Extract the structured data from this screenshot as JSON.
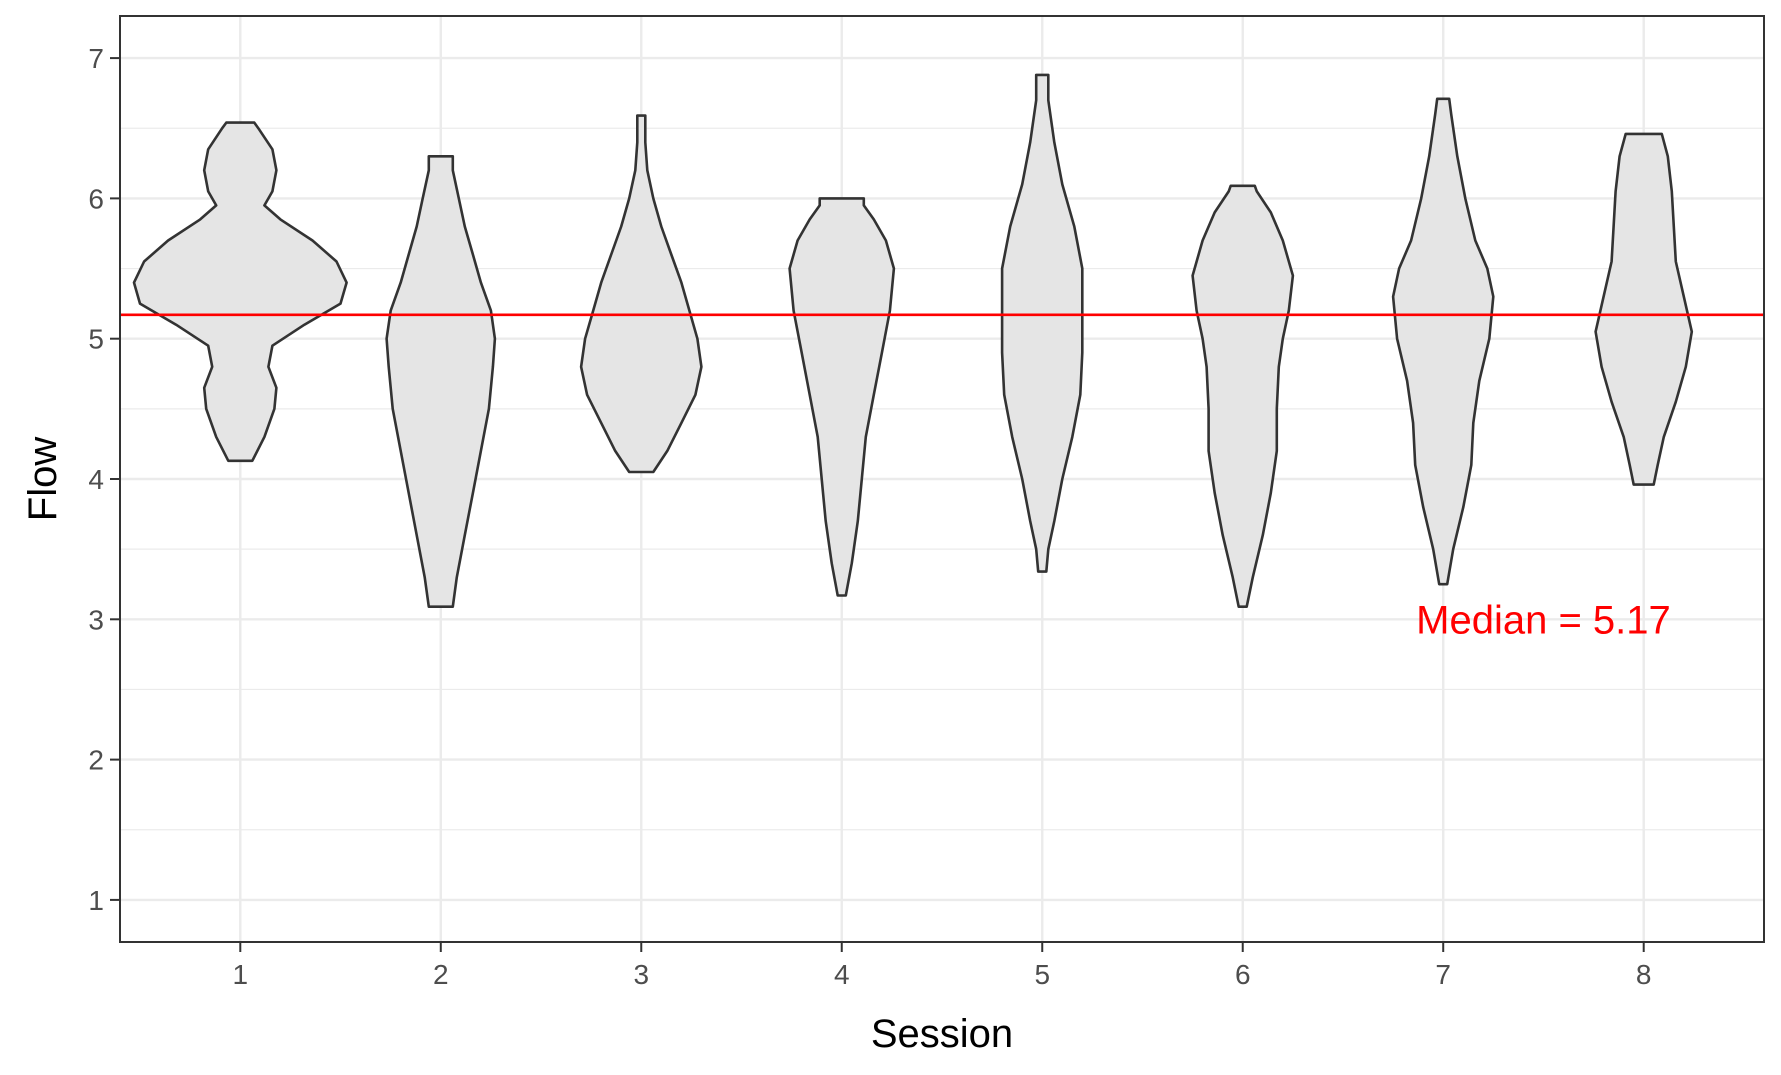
{
  "chart_data": {
    "type": "violin",
    "xlabel": "Session",
    "ylabel": "Flow",
    "categories": [
      "1",
      "2",
      "3",
      "4",
      "5",
      "6",
      "7",
      "8"
    ],
    "y_ticks": [
      "1",
      "2",
      "3",
      "4",
      "5",
      "6",
      "7"
    ],
    "ylim": [
      0.7,
      7.3
    ],
    "grid": true,
    "fill_color": "#e5e5e5",
    "outline_color": "#333333",
    "reference_line": {
      "value": 5.17,
      "color": "#ff0000"
    },
    "annotation": {
      "text": "Median = 5.17",
      "x": 7.5,
      "y": 3.0,
      "color": "#ff0000"
    },
    "violins": [
      {
        "session": "1",
        "profile": [
          [
            4.13,
            0.06
          ],
          [
            4.3,
            0.12
          ],
          [
            4.5,
            0.17
          ],
          [
            4.65,
            0.18
          ],
          [
            4.8,
            0.14
          ],
          [
            4.95,
            0.16
          ],
          [
            5.1,
            0.32
          ],
          [
            5.25,
            0.5
          ],
          [
            5.4,
            0.53
          ],
          [
            5.55,
            0.48
          ],
          [
            5.7,
            0.36
          ],
          [
            5.85,
            0.2
          ],
          [
            5.95,
            0.12
          ],
          [
            6.05,
            0.16
          ],
          [
            6.2,
            0.18
          ],
          [
            6.35,
            0.16
          ],
          [
            6.5,
            0.09
          ],
          [
            6.54,
            0.07
          ]
        ]
      },
      {
        "session": "2",
        "profile": [
          [
            3.09,
            0.06
          ],
          [
            3.3,
            0.08
          ],
          [
            3.6,
            0.12
          ],
          [
            3.9,
            0.16
          ],
          [
            4.2,
            0.2
          ],
          [
            4.5,
            0.24
          ],
          [
            4.8,
            0.26
          ],
          [
            5.0,
            0.27
          ],
          [
            5.2,
            0.25
          ],
          [
            5.4,
            0.2
          ],
          [
            5.6,
            0.16
          ],
          [
            5.8,
            0.12
          ],
          [
            6.0,
            0.09
          ],
          [
            6.2,
            0.06
          ],
          [
            6.3,
            0.06
          ]
        ]
      },
      {
        "session": "3",
        "profile": [
          [
            4.05,
            0.06
          ],
          [
            4.2,
            0.13
          ],
          [
            4.4,
            0.2
          ],
          [
            4.6,
            0.27
          ],
          [
            4.8,
            0.3
          ],
          [
            5.0,
            0.28
          ],
          [
            5.2,
            0.24
          ],
          [
            5.4,
            0.2
          ],
          [
            5.6,
            0.15
          ],
          [
            5.8,
            0.1
          ],
          [
            6.0,
            0.06
          ],
          [
            6.2,
            0.03
          ],
          [
            6.4,
            0.02
          ],
          [
            6.59,
            0.02
          ]
        ]
      },
      {
        "session": "4",
        "profile": [
          [
            3.17,
            0.02
          ],
          [
            3.4,
            0.05
          ],
          [
            3.7,
            0.08
          ],
          [
            4.0,
            0.1
          ],
          [
            4.3,
            0.12
          ],
          [
            4.6,
            0.16
          ],
          [
            4.9,
            0.2
          ],
          [
            5.2,
            0.24
          ],
          [
            5.5,
            0.26
          ],
          [
            5.7,
            0.22
          ],
          [
            5.85,
            0.16
          ],
          [
            5.95,
            0.11
          ],
          [
            6.0,
            0.11
          ]
        ]
      },
      {
        "session": "5",
        "profile": [
          [
            3.34,
            0.02
          ],
          [
            3.5,
            0.03
          ],
          [
            3.7,
            0.06
          ],
          [
            4.0,
            0.1
          ],
          [
            4.3,
            0.15
          ],
          [
            4.6,
            0.19
          ],
          [
            4.9,
            0.2
          ],
          [
            5.2,
            0.2
          ],
          [
            5.5,
            0.2
          ],
          [
            5.8,
            0.16
          ],
          [
            6.1,
            0.1
          ],
          [
            6.4,
            0.06
          ],
          [
            6.7,
            0.03
          ],
          [
            6.88,
            0.03
          ]
        ]
      },
      {
        "session": "6",
        "profile": [
          [
            3.09,
            0.02
          ],
          [
            3.3,
            0.05
          ],
          [
            3.6,
            0.1
          ],
          [
            3.9,
            0.14
          ],
          [
            4.2,
            0.17
          ],
          [
            4.5,
            0.17
          ],
          [
            4.8,
            0.18
          ],
          [
            5.0,
            0.2
          ],
          [
            5.2,
            0.23
          ],
          [
            5.45,
            0.25
          ],
          [
            5.7,
            0.2
          ],
          [
            5.9,
            0.14
          ],
          [
            6.05,
            0.07
          ],
          [
            6.09,
            0.06
          ]
        ]
      },
      {
        "session": "7",
        "profile": [
          [
            3.25,
            0.02
          ],
          [
            3.5,
            0.05
          ],
          [
            3.8,
            0.1
          ],
          [
            4.1,
            0.14
          ],
          [
            4.4,
            0.15
          ],
          [
            4.7,
            0.18
          ],
          [
            5.0,
            0.23
          ],
          [
            5.3,
            0.25
          ],
          [
            5.5,
            0.22
          ],
          [
            5.7,
            0.16
          ],
          [
            6.0,
            0.11
          ],
          [
            6.3,
            0.07
          ],
          [
            6.6,
            0.04
          ],
          [
            6.71,
            0.03
          ]
        ]
      },
      {
        "session": "8",
        "profile": [
          [
            3.96,
            0.05
          ],
          [
            4.1,
            0.07
          ],
          [
            4.3,
            0.1
          ],
          [
            4.55,
            0.16
          ],
          [
            4.8,
            0.21
          ],
          [
            5.05,
            0.24
          ],
          [
            5.3,
            0.2
          ],
          [
            5.55,
            0.16
          ],
          [
            5.8,
            0.15
          ],
          [
            6.05,
            0.14
          ],
          [
            6.3,
            0.12
          ],
          [
            6.46,
            0.09
          ]
        ]
      }
    ]
  }
}
